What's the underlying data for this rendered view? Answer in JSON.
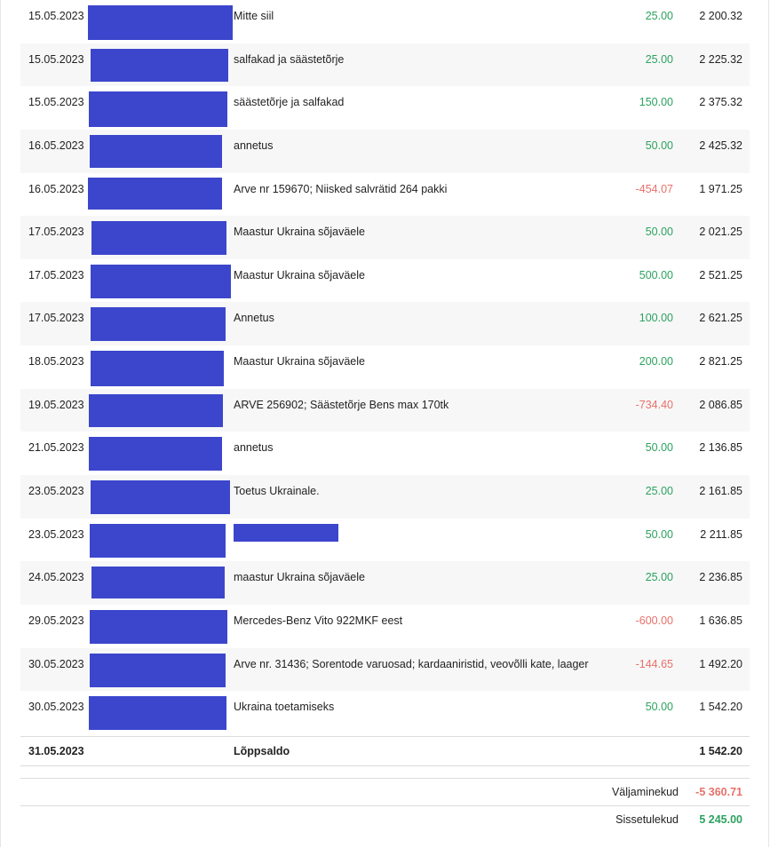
{
  "transactions": [
    {
      "date": "15.05.2023",
      "description": "Mitte siil",
      "amount": "25.00",
      "type": "credit",
      "balance": "2 200.32"
    },
    {
      "date": "15.05.2023",
      "description": "salfakad ja säästetõrje",
      "amount": "25.00",
      "type": "credit",
      "balance": "2 225.32"
    },
    {
      "date": "15.05.2023",
      "description": "säästetõrje ja salfakad",
      "amount": "150.00",
      "type": "credit",
      "balance": "2 375.32"
    },
    {
      "date": "16.05.2023",
      "description": "annetus",
      "amount": "50.00",
      "type": "credit",
      "balance": "2 425.32"
    },
    {
      "date": "16.05.2023",
      "description": "Arve nr 159670; Niisked salvrätid 264 pakki",
      "amount": "-454.07",
      "type": "debit",
      "balance": "1 971.25"
    },
    {
      "date": "17.05.2023",
      "description": "Maastur Ukraina sõjaväele",
      "amount": "50.00",
      "type": "credit",
      "balance": "2 021.25"
    },
    {
      "date": "17.05.2023",
      "description": "Maastur Ukraina sõjaväele",
      "amount": "500.00",
      "type": "credit",
      "balance": "2 521.25"
    },
    {
      "date": "17.05.2023",
      "description": "Annetus",
      "amount": "100.00",
      "type": "credit",
      "balance": "2 621.25"
    },
    {
      "date": "18.05.2023",
      "description": "Maastur Ukraina sõjaväele",
      "amount": "200.00",
      "type": "credit",
      "balance": "2 821.25"
    },
    {
      "date": "19.05.2023",
      "description": "ARVE 256902; Säästetõrje Bens max 170tk",
      "amount": "-734.40",
      "type": "debit",
      "balance": "2 086.85"
    },
    {
      "date": "21.05.2023",
      "description": "annetus",
      "amount": "50.00",
      "type": "credit",
      "balance": "2 136.85"
    },
    {
      "date": "23.05.2023",
      "description": "Toetus Ukrainale.",
      "amount": "25.00",
      "type": "credit",
      "balance": "2 161.85"
    },
    {
      "date": "23.05.2023",
      "description": "",
      "amount": "50.00",
      "type": "credit",
      "balance": "2 211.85"
    },
    {
      "date": "24.05.2023",
      "description": "maastur Ukraina sõjaväele",
      "amount": "25.00",
      "type": "credit",
      "balance": "2 236.85"
    },
    {
      "date": "29.05.2023",
      "description": "Mercedes-Benz Vito 922MKF eest",
      "amount": "-600.00",
      "type": "debit",
      "balance": "1 636.85"
    },
    {
      "date": "30.05.2023",
      "description": "Arve nr. 31436; Sorentode varuosad; kardaaniristid, veovõlli kate, laager",
      "amount": "-144.65",
      "type": "debit",
      "balance": "1 492.20"
    },
    {
      "date": "30.05.2023",
      "description": "Ukraina toetamiseks",
      "amount": "50.00",
      "type": "credit",
      "balance": "1 542.20"
    }
  ],
  "closing": {
    "date": "31.05.2023",
    "label": "Lõppsaldo",
    "balance": "1 542.20"
  },
  "summary": {
    "outgoing_label": "Väljaminekud",
    "outgoing_value": "-5 360.71",
    "incoming_label": "Sissetulekud",
    "incoming_value": "5 245.00"
  },
  "colors": {
    "credit": "#2ca25f",
    "debit": "#e8716a",
    "redaction": "#3c46cc"
  }
}
